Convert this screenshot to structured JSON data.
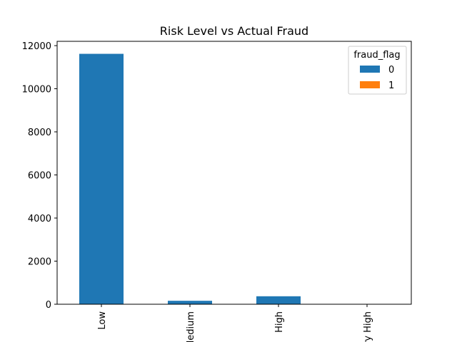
{
  "chart_data": {
    "type": "bar",
    "stacked": true,
    "title": "Risk Level vs Actual Fraud",
    "xlabel": "",
    "ylabel": "",
    "categories": [
      "Low",
      "Medium",
      "High",
      "Very High"
    ],
    "series": [
      {
        "name": "0",
        "color": "#1f77b4",
        "values": [
          11620,
          160,
          370,
          0
        ]
      },
      {
        "name": "1",
        "color": "#ff7f0e",
        "values": [
          0,
          0,
          0,
          0
        ]
      }
    ],
    "ylim": [
      0,
      12200
    ],
    "yticks": [
      0,
      2000,
      4000,
      6000,
      8000,
      10000,
      12000
    ],
    "legend": {
      "title": "fraud_flag",
      "placement": "top-right"
    },
    "grid": false
  }
}
